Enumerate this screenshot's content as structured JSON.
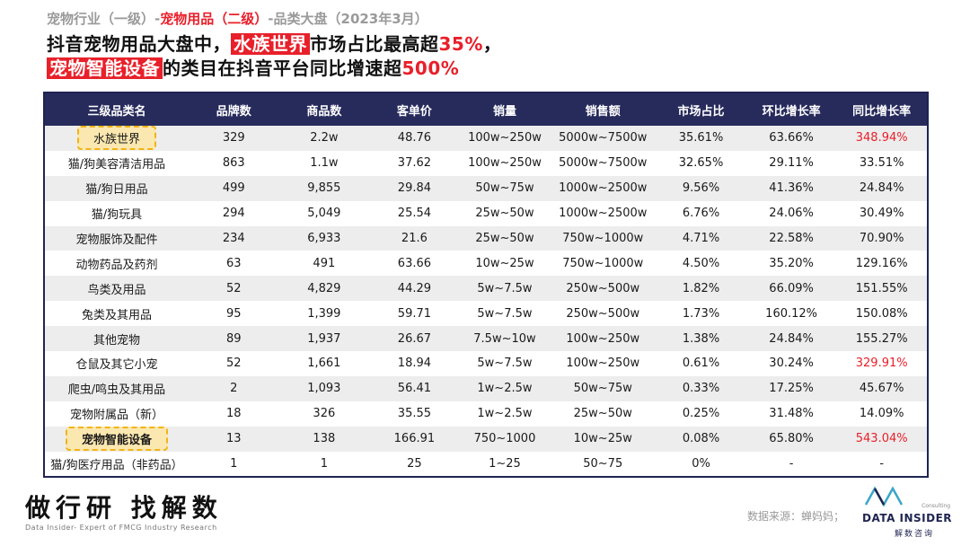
{
  "breadcrumb": {
    "part1": "宠物行业（一级）",
    "sep1": "-",
    "part2": "宠物用品（二级）",
    "sep2": "-",
    "part3": "品类大盘（2023年3月）"
  },
  "headline": {
    "line1_a": "抖音宠物用品大盘中，",
    "line1_b": "水族世界",
    "line1_c": "市场占比最高超",
    "line1_d": "35%",
    "line1_e": "，",
    "line2_a": "宠物智能设备",
    "line2_b": "的类目在抖音平台同比增速超",
    "line2_c": "500%"
  },
  "table": {
    "headers": [
      "三级品类名",
      "品牌数",
      "商品数",
      "客单价",
      "销量",
      "销售额",
      "市场占比",
      "环比增长率",
      "同比增长率"
    ],
    "rows": [
      [
        "水族世界",
        "329",
        "2.2w",
        "48.76",
        "100w~250w",
        "5000w~7500w",
        "35.61%",
        "63.66%",
        "348.94%"
      ],
      [
        "猫/狗美容清洁用品",
        "863",
        "1.1w",
        "37.62",
        "100w~250w",
        "5000w~7500w",
        "32.65%",
        "29.11%",
        "33.51%"
      ],
      [
        "猫/狗日用品",
        "499",
        "9,855",
        "29.84",
        "50w~75w",
        "1000w~2500w",
        "9.56%",
        "41.36%",
        "24.84%"
      ],
      [
        "猫/狗玩具",
        "294",
        "5,049",
        "25.54",
        "25w~50w",
        "1000w~2500w",
        "6.76%",
        "24.06%",
        "30.49%"
      ],
      [
        "宠物服饰及配件",
        "234",
        "6,933",
        "21.6",
        "25w~50w",
        "750w~1000w",
        "4.71%",
        "22.58%",
        "70.90%"
      ],
      [
        "动物药品及药剂",
        "63",
        "491",
        "63.66",
        "10w~25w",
        "750w~1000w",
        "4.50%",
        "35.20%",
        "129.16%"
      ],
      [
        "鸟类及用品",
        "52",
        "4,829",
        "44.29",
        "5w~7.5w",
        "250w~500w",
        "1.82%",
        "66.09%",
        "151.55%"
      ],
      [
        "兔类及其用品",
        "95",
        "1,399",
        "59.71",
        "5w~7.5w",
        "250w~500w",
        "1.73%",
        "160.12%",
        "150.08%"
      ],
      [
        "其他宠物",
        "89",
        "1,937",
        "26.67",
        "7.5w~10w",
        "100w~250w",
        "1.38%",
        "24.84%",
        "155.27%"
      ],
      [
        "仓鼠及其它小宠",
        "52",
        "1,661",
        "18.94",
        "5w~7.5w",
        "100w~250w",
        "0.61%",
        "30.24%",
        "329.91%"
      ],
      [
        "爬虫/鸣虫及其用品",
        "2",
        "1,093",
        "56.41",
        "1w~2.5w",
        "50w~75w",
        "0.33%",
        "17.25%",
        "45.67%"
      ],
      [
        "宠物附属品（新）",
        "18",
        "326",
        "35.55",
        "1w~2.5w",
        "25w~50w",
        "0.25%",
        "31.48%",
        "14.09%"
      ],
      [
        "宠物智能设备",
        "13",
        "138",
        "166.91",
        "750~1000",
        "10w~25w",
        "0.08%",
        "65.80%",
        "543.04%"
      ],
      [
        "猫/狗医疗用品（非药品）",
        "1",
        "1",
        "25",
        "1~25",
        "50~75",
        "0%",
        "-",
        "-"
      ]
    ]
  },
  "footer": {
    "brand": "做行研 找解数",
    "tagline": "Data Insider- Expert of FMCG Industry Research",
    "source": "数据来源：蝉妈妈；",
    "logo_consulting": "Consulting",
    "logo_brand": "DATA INSIDER",
    "logo_cn": "解数咨询"
  },
  "colors": {
    "accent_red": "#e8202a",
    "header_navy": "#272b5c",
    "highlight_gold": "#f2b316"
  },
  "highlight": {
    "row_name_boxes": [
      0,
      12
    ],
    "red_yoy_rows": [
      0,
      9,
      12
    ]
  }
}
